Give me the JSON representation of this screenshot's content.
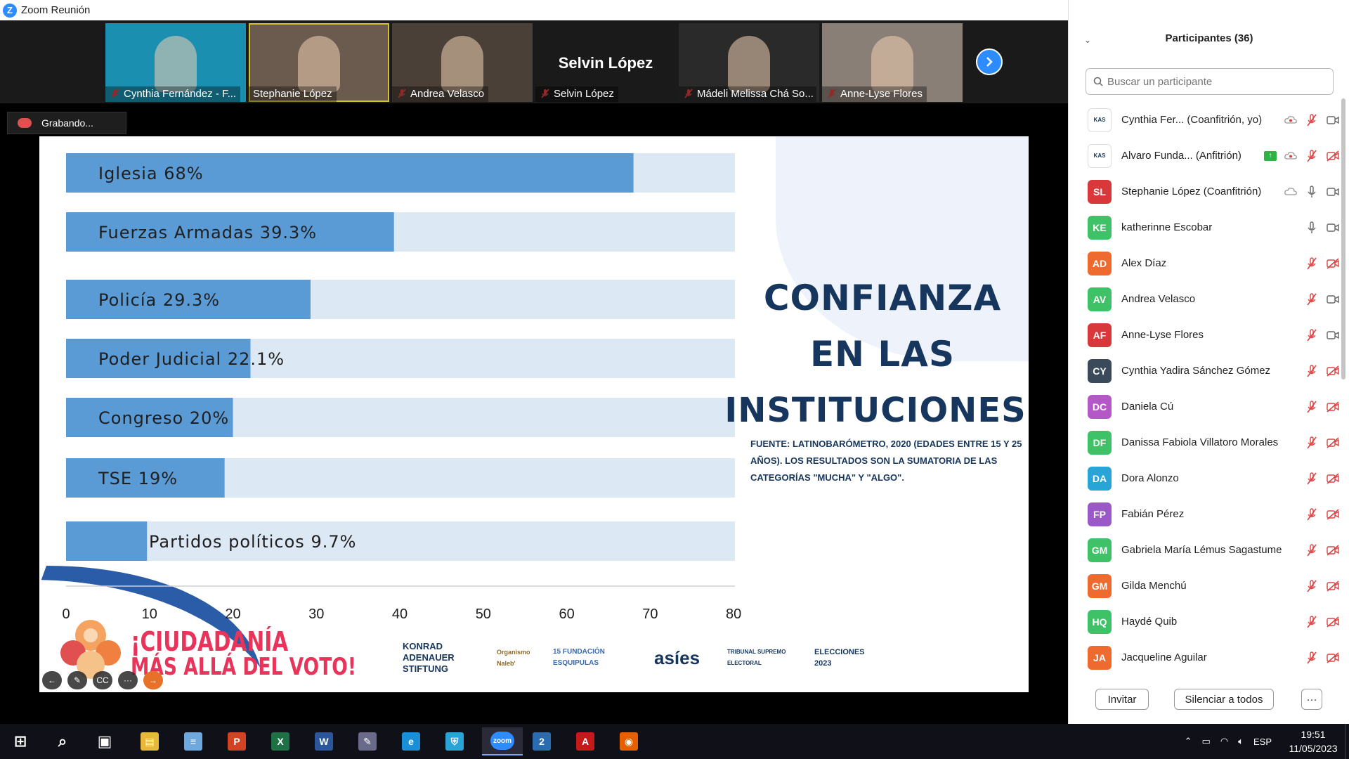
{
  "window": {
    "title": "Zoom Reunión"
  },
  "thumbnails": [
    {
      "name": "Cynthia Fernández - F...",
      "bg": "#1a8fb0",
      "muted": true
    },
    {
      "name": "Stephanie López",
      "bg": "#6b5a4e",
      "muted": false,
      "active": true
    },
    {
      "name": "Andrea Velasco",
      "bg": "#4a4038",
      "muted": true
    },
    {
      "name": "Selvin López",
      "bg": "#1a1a1a",
      "muted": true,
      "big_name": "Selvin López"
    },
    {
      "name": "Mádeli Melissa Chá So...",
      "bg": "#2a2a2a",
      "muted": true
    },
    {
      "name": "Anne-Lyse Flores",
      "bg": "#8a7f76",
      "muted": true
    }
  ],
  "recording": {
    "label": "Grabando..."
  },
  "slide": {
    "title_lines": [
      "CONFIANZA",
      "EN LAS",
      "INSTITUCIONES"
    ],
    "source": "FUENTE: LATINOBARÓMETRO, 2020 (EDADES ENTRE 15 Y 25 AÑOS). LOS RESULTADOS SON LA SUMATORIA DE LAS CATEGORÍAS \"MUCHA\" Y \"ALGO\".",
    "campaign_line1": "¡CIUDADANÍA",
    "campaign_line2": "MÁS ALLÁ DEL VOTO!",
    "logos": [
      "KONRAD ADENAUER STIFTUNG",
      "Organismo Naleb'",
      "15 FUNDACIÓN ESQUIPULAS",
      "asíes",
      "TRIBUNAL SUPREMO ELECTORAL",
      "ELECCIONES 2023"
    ]
  },
  "chart_data": {
    "type": "bar",
    "orientation": "horizontal",
    "categories": [
      "Iglesia",
      "Fuerzas Armadas",
      "Policía",
      "Poder Judicial",
      "Congreso",
      "TSE",
      "Partidos políticos"
    ],
    "labels": [
      "Iglesia 68%",
      "Fuerzas Armadas 39.3%",
      "Policía 29.3%",
      "Poder Judicial 22.1%",
      "Congreso 20%",
      "TSE 19%",
      "Partidos políticos 9.7%"
    ],
    "values": [
      68,
      39.3,
      29.3,
      22.1,
      20,
      19,
      9.7
    ],
    "xlim": [
      0,
      81
    ],
    "xticks": [
      0,
      10,
      20,
      30,
      40,
      50,
      60,
      70,
      80
    ],
    "bar_color": "#5b9bd5",
    "track_color": "#dde8f5"
  },
  "slide_controls": [
    "←",
    "✎",
    "CC",
    "···",
    "→"
  ],
  "panel": {
    "title": "Participantes (36)",
    "search_placeholder": "Buscar un participante",
    "participants": [
      {
        "initials": "KAS",
        "name": "Cynthia Fer... (Coanfitrión, yo)",
        "color": "#ffffff",
        "logo": true,
        "cloud": true,
        "mic": "muted",
        "cam": "on"
      },
      {
        "initials": "KAS",
        "name": "Alvaro Funda... (Anfitrión)",
        "color": "#ffffff",
        "logo": true,
        "share": true,
        "cloud": true,
        "mic": "muted",
        "cam": "off"
      },
      {
        "initials": "SL",
        "name": "Stephanie López (Coanfitrión)",
        "color": "#d9383a",
        "cloud": true,
        "mic": "on",
        "cam": "on"
      },
      {
        "initials": "KE",
        "name": "katherinne Escobar",
        "color": "#3ec167",
        "mic": "on",
        "cam": "on"
      },
      {
        "initials": "AD",
        "name": "Alex Díaz",
        "color": "#ef6a2e",
        "mic": "muted",
        "cam": "off"
      },
      {
        "initials": "AV",
        "name": "Andrea Velasco",
        "color": "#3ec167",
        "mic": "muted",
        "cam": "on"
      },
      {
        "initials": "AF",
        "name": "Anne-Lyse Flores",
        "color": "#d9383a",
        "mic": "muted",
        "cam": "on"
      },
      {
        "initials": "CY",
        "name": "Cynthia Yadira Sánchez Gómez",
        "color": "#3a4a5a",
        "mic": "muted",
        "cam": "off"
      },
      {
        "initials": "DC",
        "name": "Daniela Cú",
        "color": "#b458c8",
        "mic": "muted",
        "cam": "off"
      },
      {
        "initials": "DF",
        "name": "Danissa Fabiola Villatoro Morales",
        "color": "#3ec167",
        "mic": "muted",
        "cam": "off"
      },
      {
        "initials": "DA",
        "name": "Dora Alonzo",
        "color": "#29a4d6",
        "mic": "muted",
        "cam": "off"
      },
      {
        "initials": "FP",
        "name": "Fabián Pérez",
        "color": "#9b59c8",
        "mic": "muted",
        "cam": "off"
      },
      {
        "initials": "GM",
        "name": "Gabriela María Lémus Sagastume",
        "color": "#3ec167",
        "mic": "muted",
        "cam": "off"
      },
      {
        "initials": "GM",
        "name": "Gilda Menchú",
        "color": "#ef6a2e",
        "mic": "muted",
        "cam": "off"
      },
      {
        "initials": "HQ",
        "name": "Haydé Quib",
        "color": "#3ec167",
        "mic": "muted",
        "cam": "off"
      },
      {
        "initials": "JA",
        "name": "Jacqueline Aguilar",
        "color": "#ef6a2e",
        "mic": "muted",
        "cam": "off"
      }
    ],
    "invite_label": "Invitar",
    "mute_all_label": "Silenciar a todos",
    "more_label": "···"
  },
  "taskbar": {
    "apps": [
      {
        "name": "start-icon",
        "glyph": "⊞",
        "color": "#101018"
      },
      {
        "name": "search-icon",
        "glyph": "⌕",
        "color": "#101018"
      },
      {
        "name": "task-view-icon",
        "glyph": "▣",
        "color": "#101018"
      },
      {
        "name": "file-explorer-icon",
        "glyph": "▤",
        "color": "#e8b83a"
      },
      {
        "name": "notepad-icon",
        "glyph": "≡",
        "color": "#6fa8dc"
      },
      {
        "name": "powerpoint-icon",
        "glyph": "P",
        "color": "#d04423"
      },
      {
        "name": "excel-icon",
        "glyph": "X",
        "color": "#1e7145"
      },
      {
        "name": "word-icon",
        "glyph": "W",
        "color": "#2b579a"
      },
      {
        "name": "paint-icon",
        "glyph": "✎",
        "color": "#6a6a8a"
      },
      {
        "name": "edge-icon",
        "glyph": "e",
        "color": "#1a8fd6"
      },
      {
        "name": "defender-icon",
        "glyph": "⛨",
        "color": "#29a4d6"
      },
      {
        "name": "zoom-icon",
        "glyph": "zoom",
        "color": "#2d8cff",
        "active": true
      },
      {
        "name": "app-2-icon",
        "glyph": "2",
        "color": "#2b6cb0"
      },
      {
        "name": "acrobat-icon",
        "glyph": "A",
        "color": "#c41a1a"
      },
      {
        "name": "firefox-icon",
        "glyph": "◉",
        "color": "#e66000"
      }
    ],
    "language": "ESP",
    "time": "19:51",
    "date": "11/05/2023"
  }
}
